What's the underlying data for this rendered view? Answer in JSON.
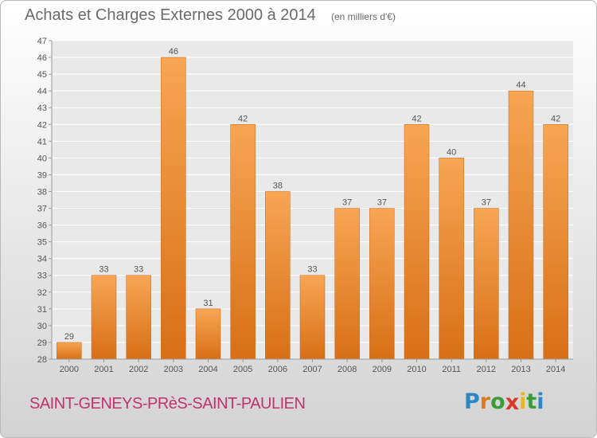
{
  "header": {
    "title": "Achats et Charges Externes 2000 à 2014",
    "unit": "(en milliers d'€)"
  },
  "footer": {
    "place": "SAINT-GENEYS-PRèS-SAINT-PAULIEN",
    "logo_letters": [
      "P",
      "r",
      "o",
      "x",
      "i",
      "t",
      "i"
    ],
    "logo_colors": [
      "#2f86c4",
      "#e07b1d",
      "#3a9c3a",
      "#d63a2a",
      "#e7b722",
      "#3a9c3a",
      "#2f86c4"
    ]
  },
  "chart_data": {
    "type": "bar",
    "categories": [
      "2000",
      "2001",
      "2002",
      "2003",
      "2004",
      "2005",
      "2006",
      "2007",
      "2008",
      "2009",
      "2010",
      "2011",
      "2012",
      "2013",
      "2014"
    ],
    "values": [
      29,
      33,
      33,
      46,
      31,
      42,
      38,
      33,
      37,
      37,
      42,
      40,
      37,
      44,
      42
    ],
    "ylim": [
      28,
      47
    ],
    "yticks": [
      28,
      29,
      30,
      31,
      32,
      33,
      34,
      35,
      36,
      37,
      38,
      39,
      40,
      41,
      42,
      43,
      44,
      45,
      46,
      47
    ],
    "grid": true,
    "bar_color": "#f28e2c",
    "bar_color_dark": "#e3761a"
  }
}
